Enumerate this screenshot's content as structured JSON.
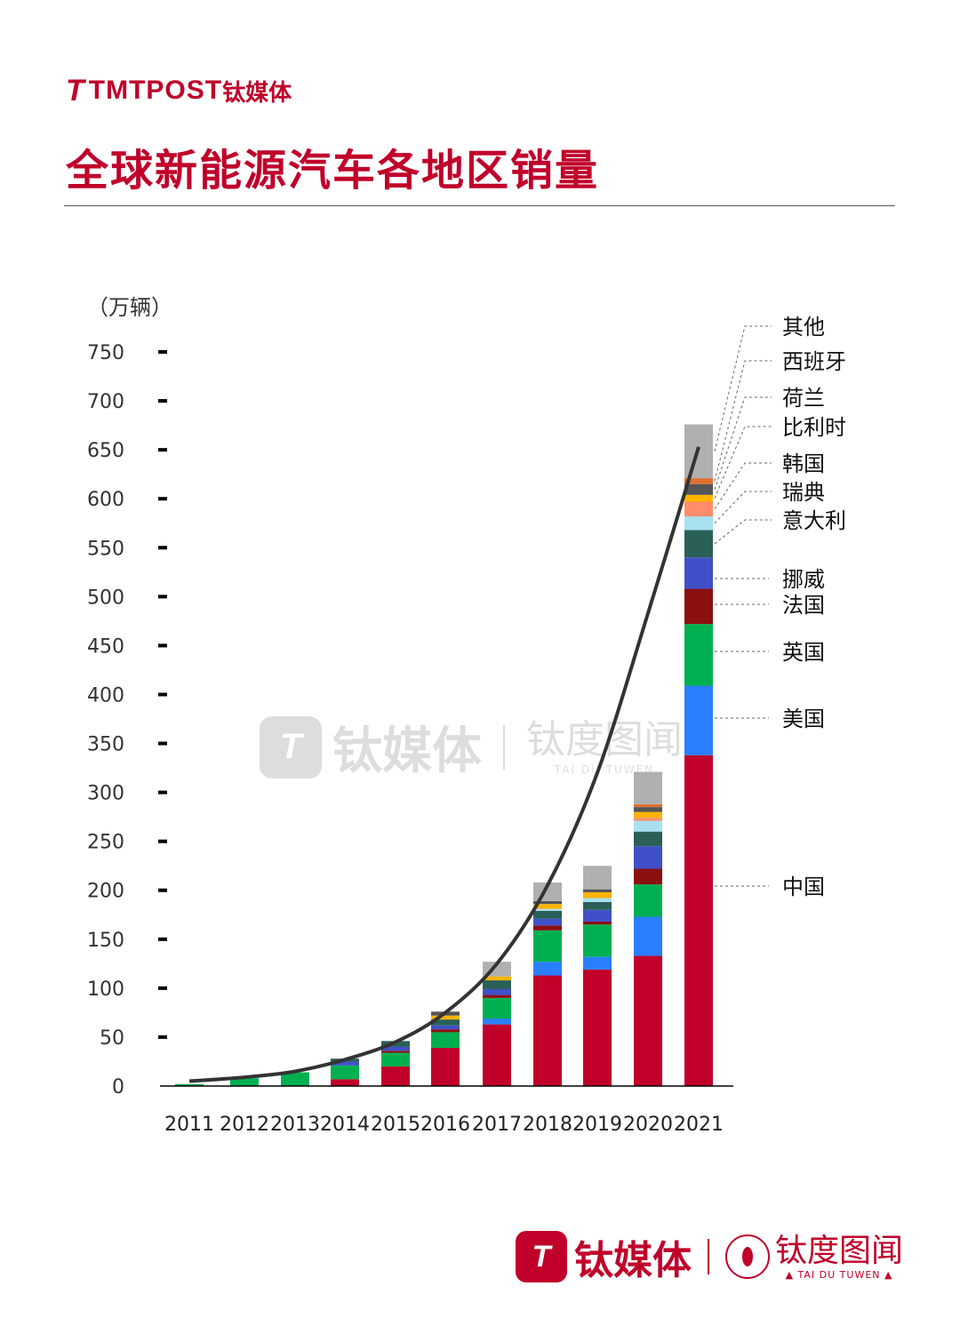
{
  "header": {
    "logo_mark": "T",
    "logo_text": "TMTPOST",
    "logo_cn": "钛媒体",
    "title": "全球新能源汽车各地区销量"
  },
  "watermark": {
    "mark": "T",
    "brand": "钛媒体",
    "brand2": "钛度图闻",
    "brand2_en": "TAI DU TUWEN"
  },
  "footer": {
    "mark": "T",
    "brand": "钛媒体",
    "brand2": "钛度图闻",
    "brand2_en": "▲ TAI DU TUWEN ▲"
  },
  "chart_data": {
    "type": "bar",
    "stacked": true,
    "title": "全球新能源汽车各地区销量",
    "ylabel": "（万辆）",
    "xlabel": "",
    "ylim": [
      0,
      750
    ],
    "yticks": [
      "0",
      "50",
      "100",
      "150",
      "200",
      "250",
      "300",
      "350",
      "400",
      "450",
      "500",
      "550",
      "600",
      "650",
      "700",
      "750"
    ],
    "grid": false,
    "legend_placement": "right",
    "categories": [
      "2011",
      "2012",
      "2013",
      "2014",
      "2015",
      "2016",
      "2017",
      "2018",
      "2019",
      "2020",
      "2021"
    ],
    "series": [
      {
        "name": "中国",
        "color": "#c0002a",
        "values": [
          0,
          0,
          0,
          7,
          20,
          39,
          63,
          113,
          119,
          133,
          338
        ]
      },
      {
        "name": "美国",
        "color": "#2a7fff",
        "values": [
          0,
          0,
          0,
          0,
          0,
          0,
          6,
          14,
          13,
          40,
          71
        ]
      },
      {
        "name": "英国",
        "color": "#00b050",
        "values": [
          2,
          8,
          14,
          14,
          14,
          16,
          21,
          32,
          33,
          33,
          63
        ]
      },
      {
        "name": "法国",
        "color": "#8b1010",
        "values": [
          0,
          0,
          0,
          0,
          2,
          3,
          3,
          5,
          3,
          16,
          36
        ]
      },
      {
        "name": "挪威",
        "color": "#4050c8",
        "values": [
          0,
          0,
          0,
          4,
          4,
          4,
          6,
          7,
          12,
          23,
          32
        ]
      },
      {
        "name": "意大利",
        "color": "#2a6058",
        "values": [
          0,
          0,
          0,
          3,
          6,
          6,
          9,
          8,
          8,
          15,
          28
        ]
      },
      {
        "name": "瑞典",
        "color": "#a8e0f0",
        "values": [
          0,
          0,
          0,
          0,
          0,
          0,
          0,
          2,
          4,
          11,
          14
        ]
      },
      {
        "name": "韩国",
        "color": "#ff8c6a",
        "values": [
          0,
          0,
          0,
          0,
          0,
          0,
          0,
          0,
          0,
          3,
          15
        ]
      },
      {
        "name": "比利时",
        "color": "#ffb400",
        "values": [
          0,
          0,
          0,
          0,
          0,
          4,
          4,
          5,
          6,
          6,
          7
        ]
      },
      {
        "name": "荷兰",
        "color": "#555555",
        "values": [
          0,
          0,
          0,
          0,
          0,
          4,
          0,
          3,
          3,
          5,
          11
        ]
      },
      {
        "name": "西班牙",
        "color": "#e07030",
        "values": [
          0,
          0,
          0,
          0,
          0,
          0,
          0,
          0,
          0,
          3,
          6
        ]
      },
      {
        "name": "其他",
        "color": "#b0b0b0",
        "values": [
          0,
          0,
          0,
          0,
          0,
          0,
          15,
          19,
          24,
          33,
          55
        ]
      }
    ],
    "trend_line": {
      "color": "#333333",
      "values": [
        5,
        9,
        15,
        27,
        45,
        75,
        125,
        205,
        320,
        483,
        653
      ]
    }
  }
}
